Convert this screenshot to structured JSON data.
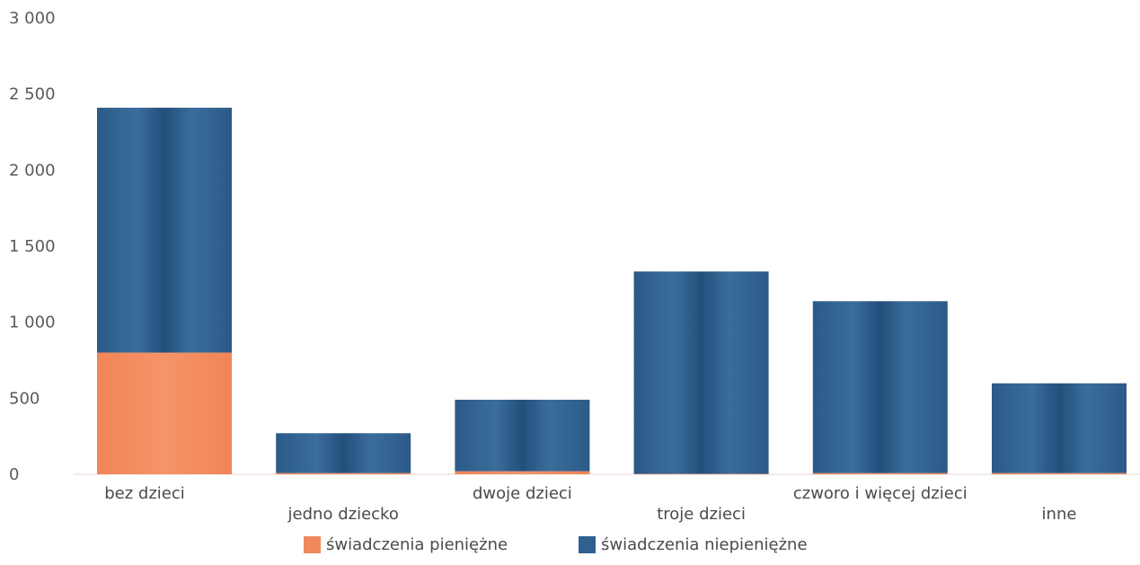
{
  "chart_data": {
    "type": "bar",
    "stacked": true,
    "categories": [
      "bez dzieci",
      "jedno dziecko",
      "dwoje dzieci",
      "troje dzieci",
      "czworo i więcej dzieci",
      "inne"
    ],
    "series": [
      {
        "name": "świadczenia pieniężne",
        "color": "#f08a5d",
        "values": [
          800,
          8,
          20,
          3,
          8,
          8
        ]
      },
      {
        "name": "świadczenia niepieniężne",
        "color": "#2f6090",
        "values": [
          1610,
          262,
          470,
          1330,
          1130,
          590
        ]
      }
    ],
    "yticks": [
      "0",
      "500",
      "1 000",
      "1 500",
      "2 000",
      "2 500",
      "3 000"
    ],
    "ylim": [
      0,
      3000
    ],
    "legend_position": "bottom",
    "grid": false
  }
}
